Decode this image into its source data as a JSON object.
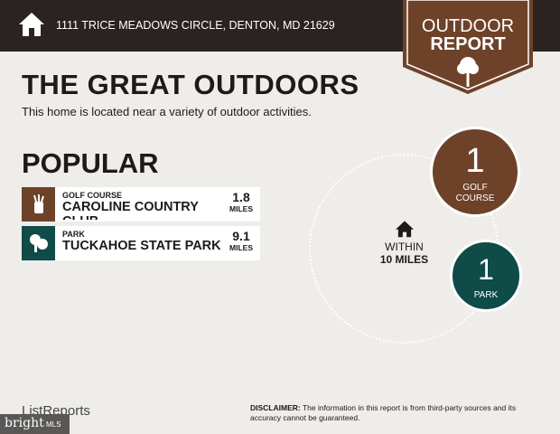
{
  "header": {
    "address": "1111 TRICE MEADOWS CIRCLE, DENTON, MD 21629",
    "home_icon": "house-icon"
  },
  "banner": {
    "line1": "OUTDOOR",
    "line2": "REPORT",
    "icon": "tree-icon"
  },
  "title": "THE GREAT OUTDOORS",
  "subtitle": "This home is located near a variety of outdoor activities.",
  "popular": {
    "heading": "POPULAR",
    "items": [
      {
        "category": "GOLF COURSE",
        "name": "CAROLINE COUNTRY CLUB",
        "distance": "1.8",
        "unit": "MILES",
        "icon": "golf-bag-icon",
        "color": "#6e4229"
      },
      {
        "category": "PARK",
        "name": "TUCKAHOE STATE PARK",
        "distance": "9.1",
        "unit": "MILES",
        "icon": "park-tree-icon",
        "color": "#0f4b47"
      }
    ]
  },
  "radius": {
    "line1": "WITHIN",
    "line2": "10 MILES"
  },
  "counts": [
    {
      "count": "1",
      "label": "GOLF COURSE",
      "color": "#6e4229"
    },
    {
      "count": "1",
      "label": "PARK",
      "color": "#0f4b47"
    }
  ],
  "footer": {
    "brand": "ListReports",
    "watermark": "bright MLS",
    "disclaimer_label": "DISCLAIMER:",
    "disclaimer_text": " The information in this report is from third-party sources and its accuracy cannot be guaranteed."
  }
}
